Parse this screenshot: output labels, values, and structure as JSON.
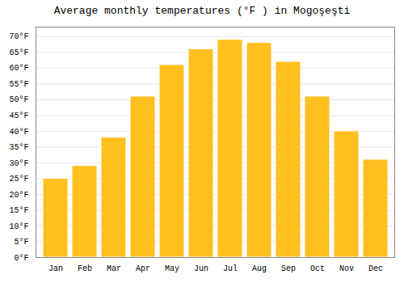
{
  "chart_data": {
    "type": "bar",
    "title": "Average monthly temperatures (°F ) in Mogoşeşti",
    "categories": [
      "Jan",
      "Feb",
      "Mar",
      "Apr",
      "May",
      "Jun",
      "Jul",
      "Aug",
      "Sep",
      "Oct",
      "Nov",
      "Dec"
    ],
    "values": [
      25,
      29,
      38,
      51,
      61,
      66,
      69,
      68,
      62,
      51,
      40,
      31
    ],
    "color": "#FFC020",
    "ylim": [
      0,
      73
    ],
    "yticks": [
      {
        "value": 0,
        "label": "0°F"
      },
      {
        "value": 5,
        "label": "5°F"
      },
      {
        "value": 10,
        "label": "10°F"
      },
      {
        "value": 15,
        "label": "15°F"
      },
      {
        "value": 20,
        "label": "20°F"
      },
      {
        "value": 25,
        "label": "25°F"
      },
      {
        "value": 30,
        "label": "30°F"
      },
      {
        "value": 35,
        "label": "35°F"
      },
      {
        "value": 40,
        "label": "40°F"
      },
      {
        "value": 45,
        "label": "45°F"
      },
      {
        "value": 50,
        "label": "50°F"
      },
      {
        "value": 55,
        "label": "55°F"
      },
      {
        "value": 60,
        "label": "60°F"
      },
      {
        "value": 65,
        "label": "65°F"
      },
      {
        "value": 70,
        "label": "70°F"
      }
    ],
    "grid": true
  }
}
